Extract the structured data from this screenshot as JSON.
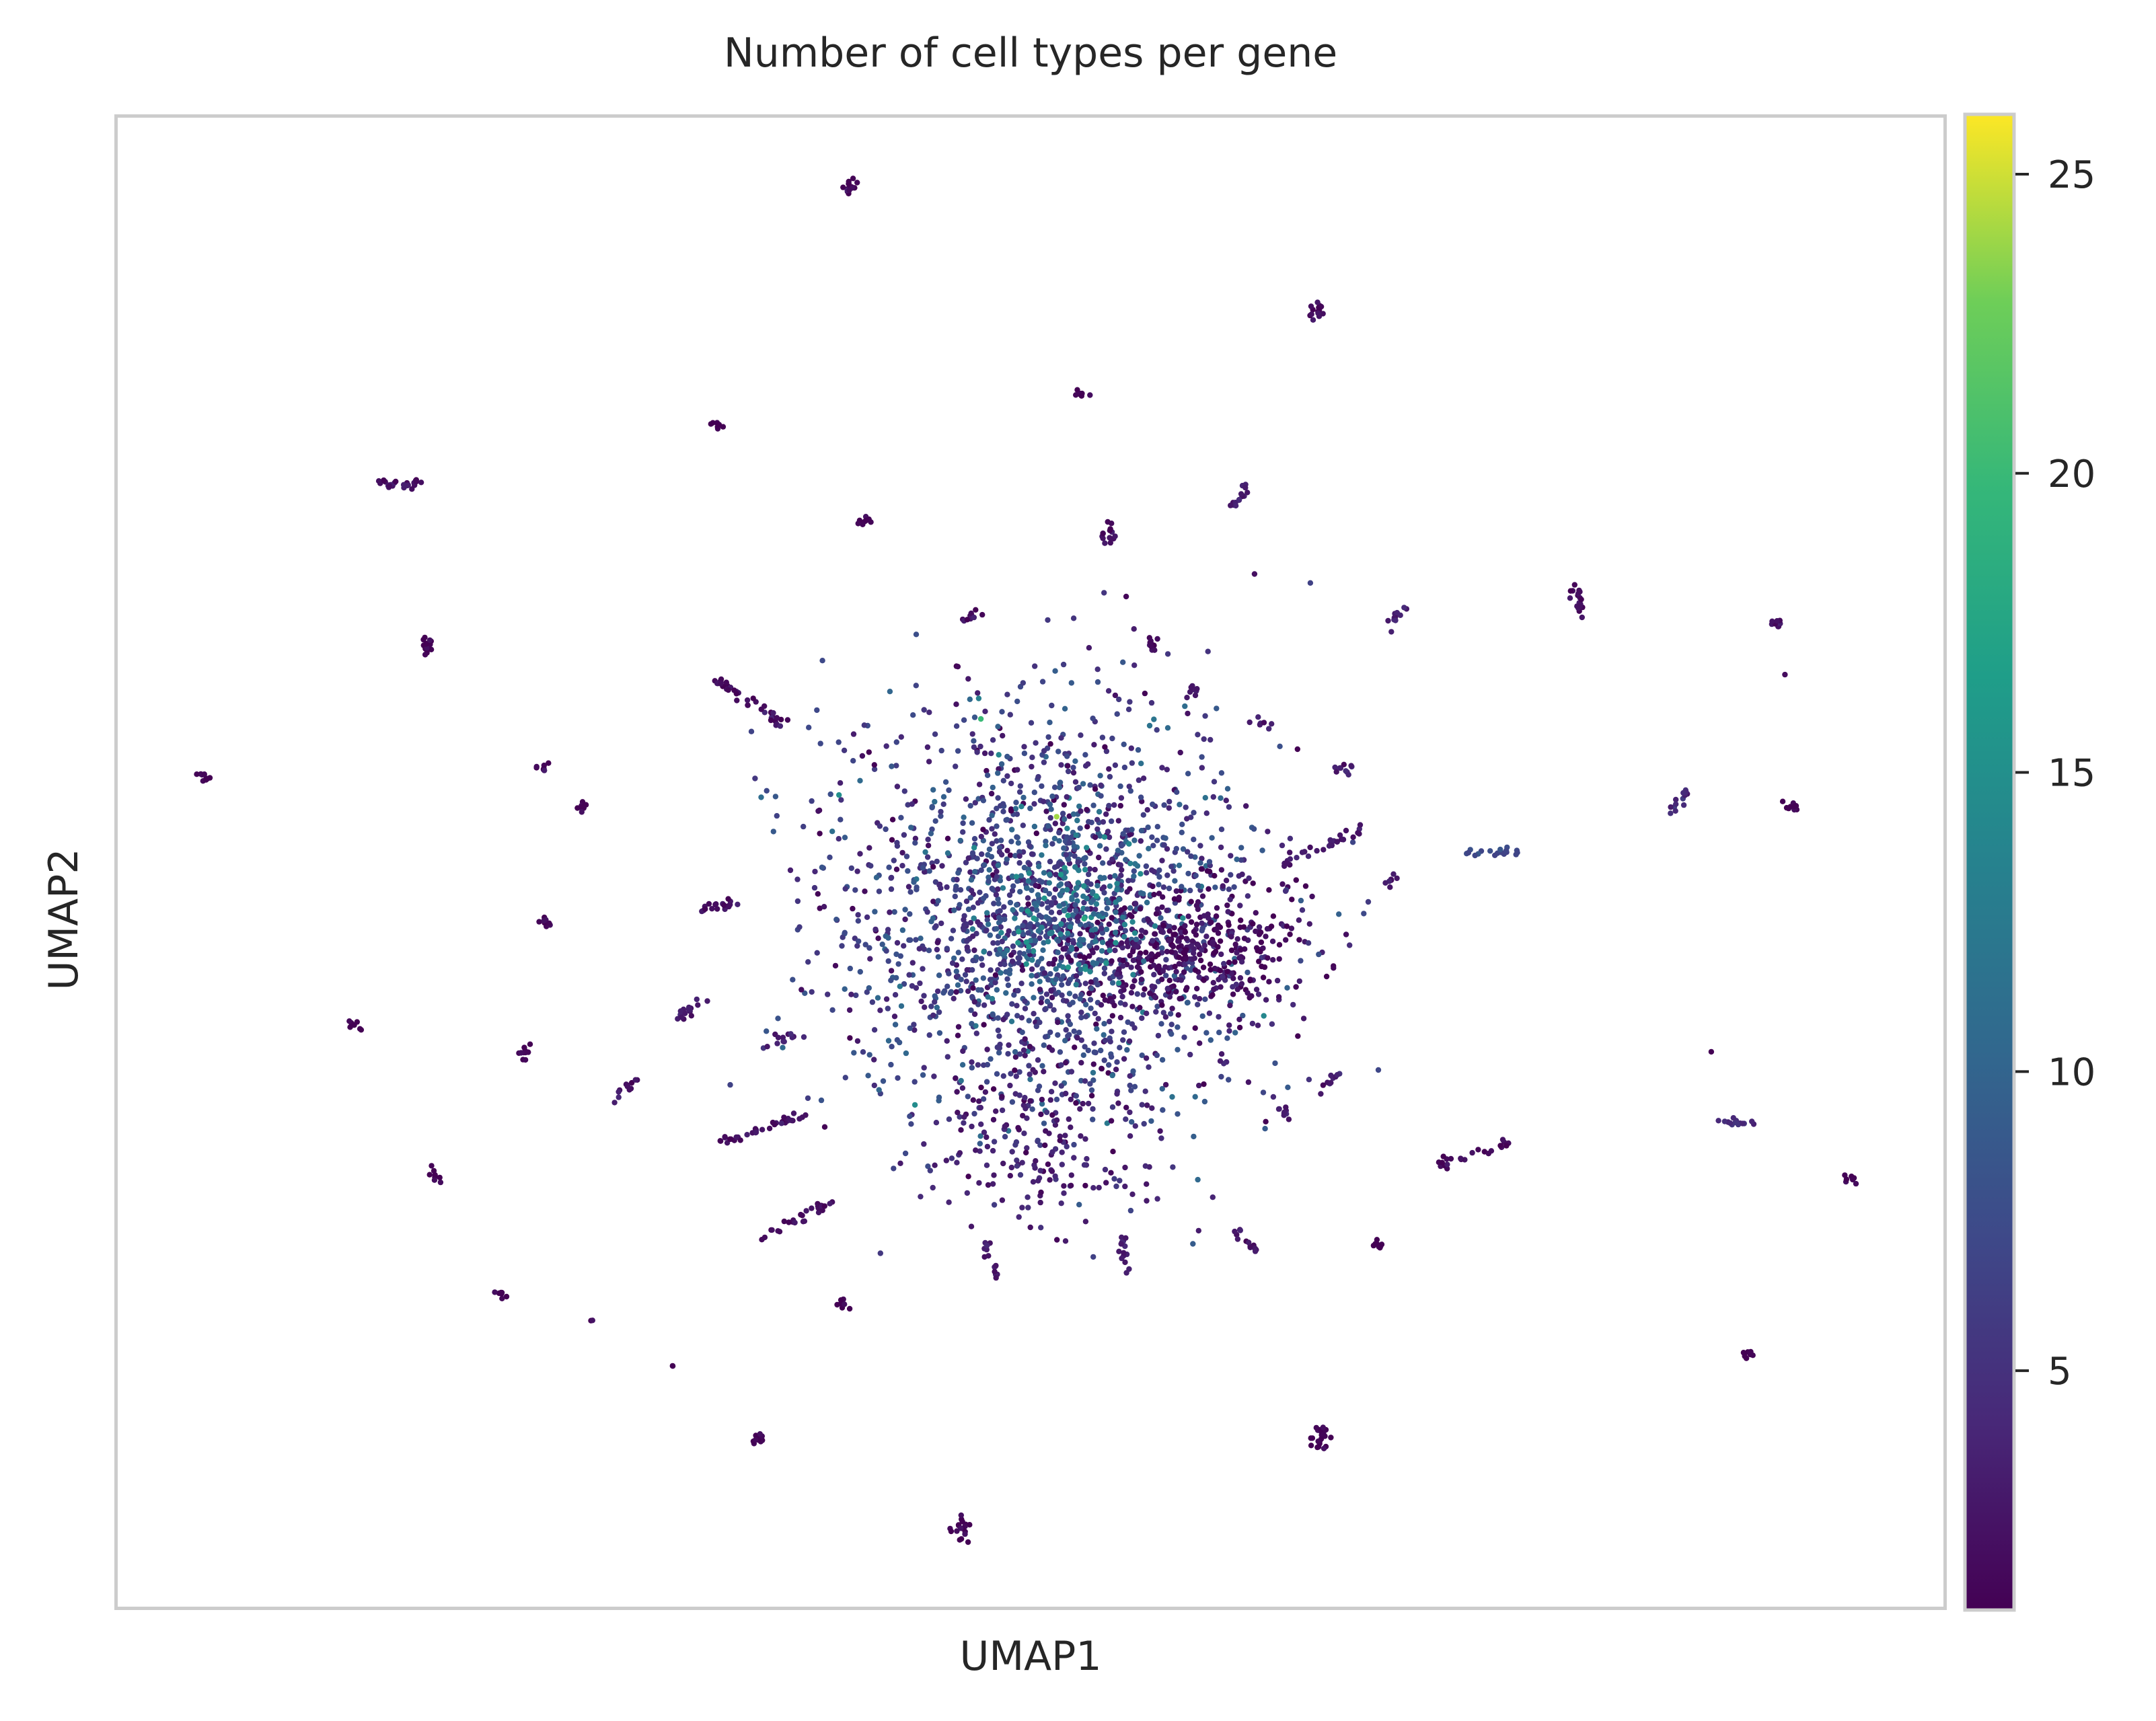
{
  "chart_data": {
    "type": "scatter",
    "title": "Number of cell types per gene",
    "xlabel": "UMAP1",
    "ylabel": "UMAP2",
    "x_ticks": "none",
    "y_ticks": "none",
    "grid": false,
    "colormap": "viridis",
    "colorbar": {
      "range": [
        1,
        26
      ],
      "ticks": [
        5,
        10,
        15,
        20,
        25
      ],
      "tick_labels": [
        "5",
        "10",
        "15",
        "20",
        "25"
      ]
    },
    "clusters": [
      {
        "x": 617,
        "y": 137,
        "r": 6,
        "n": 14,
        "v": 1
      },
      {
        "x": 955,
        "y": 225,
        "r": 6,
        "n": 14,
        "v": 1
      },
      {
        "x": 783,
        "y": 286,
        "r": 5,
        "n": 8,
        "v": 1
      },
      {
        "x": 520,
        "y": 308,
        "r": 5,
        "n": 8,
        "v": 1
      },
      {
        "x": 289,
        "y": 352,
        "r": 16,
        "n": 26,
        "v": 2,
        "dx": 1,
        "dy": 0
      },
      {
        "x": 628,
        "y": 378,
        "r": 5,
        "n": 8,
        "v": 1
      },
      {
        "x": 805,
        "y": 388,
        "r": 7,
        "n": 14,
        "v": 2
      },
      {
        "x": 900,
        "y": 362,
        "r": 12,
        "n": 14,
        "v": 3,
        "dx": 0.6,
        "dy": -0.8
      },
      {
        "x": 1145,
        "y": 434,
        "r": 12,
        "n": 20,
        "v": 2,
        "dx": 0.3,
        "dy": 1
      },
      {
        "x": 1015,
        "y": 446,
        "r": 10,
        "n": 12,
        "v": 3,
        "dx": 0.6,
        "dy": -0.8
      },
      {
        "x": 1290,
        "y": 452,
        "r": 5,
        "n": 10,
        "v": 2
      },
      {
        "x": 706,
        "y": 448,
        "r": 8,
        "n": 10,
        "v": 2,
        "dx": 1,
        "dy": 0
      },
      {
        "x": 836,
        "y": 467,
        "r": 6,
        "n": 10,
        "v": 2
      },
      {
        "x": 310,
        "y": 470,
        "r": 8,
        "n": 14,
        "v": 1,
        "dx": 0,
        "dy": 1
      },
      {
        "x": 545,
        "y": 510,
        "r": 30,
        "n": 40,
        "v": 2,
        "dx": 0.82,
        "dy": 0.57
      },
      {
        "x": 148,
        "y": 563,
        "r": 5,
        "n": 10,
        "v": 1
      },
      {
        "x": 393,
        "y": 558,
        "r": 4,
        "n": 8,
        "v": 1
      },
      {
        "x": 423,
        "y": 586,
        "r": 5,
        "n": 8,
        "v": 1
      },
      {
        "x": 868,
        "y": 503,
        "r": 5,
        "n": 8,
        "v": 3
      },
      {
        "x": 916,
        "y": 525,
        "r": 6,
        "n": 8,
        "v": 3
      },
      {
        "x": 1220,
        "y": 583,
        "r": 12,
        "n": 14,
        "v": 4,
        "dx": 0.6,
        "dy": -0.8
      },
      {
        "x": 1301,
        "y": 587,
        "r": 5,
        "n": 10,
        "v": 1
      },
      {
        "x": 522,
        "y": 658,
        "r": 15,
        "n": 18,
        "v": 2,
        "dx": 1,
        "dy": -0.2
      },
      {
        "x": 397,
        "y": 670,
        "r": 4,
        "n": 8,
        "v": 1
      },
      {
        "x": 257,
        "y": 744,
        "r": 4,
        "n": 8,
        "v": 1
      },
      {
        "x": 380,
        "y": 765,
        "r": 5,
        "n": 10,
        "v": 1
      },
      {
        "x": 500,
        "y": 733,
        "r": 14,
        "n": 16,
        "v": 3,
        "dx": 0.8,
        "dy": -0.6
      },
      {
        "x": 455,
        "y": 788,
        "r": 10,
        "n": 12,
        "v": 3,
        "dx": 0.6,
        "dy": -0.8
      },
      {
        "x": 567,
        "y": 755,
        "r": 10,
        "n": 10,
        "v": 3,
        "dx": 1,
        "dy": -0.3
      },
      {
        "x": 316,
        "y": 853,
        "r": 5,
        "n": 8,
        "v": 1
      },
      {
        "x": 553,
        "y": 820,
        "r": 34,
        "n": 34,
        "v": 2,
        "dx": 0.95,
        "dy": -0.3
      },
      {
        "x": 578,
        "y": 885,
        "r": 30,
        "n": 30,
        "v": 2,
        "dx": 0.9,
        "dy": -0.45
      },
      {
        "x": 365,
        "y": 940,
        "r": 5,
        "n": 8,
        "v": 1
      },
      {
        "x": 612,
        "y": 946,
        "r": 5,
        "n": 8,
        "v": 1
      },
      {
        "x": 430,
        "y": 959,
        "r": 2,
        "n": 2,
        "v": 1
      },
      {
        "x": 487,
        "y": 993,
        "r": 2,
        "n": 2,
        "v": 1
      },
      {
        "x": 550,
        "y": 1045,
        "r": 5,
        "n": 10,
        "v": 1
      },
      {
        "x": 698,
        "y": 1110,
        "r": 7,
        "n": 18,
        "v": 1
      },
      {
        "x": 958,
        "y": 1042,
        "r": 8,
        "n": 22,
        "v": 1
      },
      {
        "x": 1268,
        "y": 982,
        "r": 6,
        "n": 10,
        "v": 1
      },
      {
        "x": 1343,
        "y": 853,
        "r": 5,
        "n": 8,
        "v": 1
      },
      {
        "x": 1260,
        "y": 815,
        "r": 14,
        "n": 14,
        "v": 4,
        "dx": 1,
        "dy": 0.1
      },
      {
        "x": 1070,
        "y": 838,
        "r": 28,
        "n": 24,
        "v": 2,
        "dx": 0.95,
        "dy": -0.3
      },
      {
        "x": 1001,
        "y": 904,
        "r": 4,
        "n": 8,
        "v": 1
      },
      {
        "x": 903,
        "y": 900,
        "r": 12,
        "n": 14,
        "v": 3,
        "dx": 0.7,
        "dy": 0.7
      },
      {
        "x": 815,
        "y": 910,
        "r": 12,
        "n": 14,
        "v": 3,
        "dx": 0,
        "dy": 1
      },
      {
        "x": 720,
        "y": 915,
        "r": 16,
        "n": 14,
        "v": 3,
        "dx": 0.3,
        "dy": 1
      },
      {
        "x": 1083,
        "y": 620,
        "r": 18,
        "n": 18,
        "v": 7,
        "dx": 1,
        "dy": 0
      },
      {
        "x": 960,
        "y": 615,
        "r": 32,
        "n": 30,
        "v": 3,
        "dx": 0.93,
        "dy": -0.38
      },
      {
        "x": 1010,
        "y": 640,
        "r": 6,
        "n": 8,
        "v": 3
      },
      {
        "x": 966,
        "y": 785,
        "r": 10,
        "n": 10,
        "v": 3,
        "dx": 0.5,
        "dy": -0.9
      },
      {
        "x": 930,
        "y": 805,
        "r": 12,
        "n": 10,
        "v": 3,
        "dx": 0.6,
        "dy": 0.8
      },
      {
        "x": 975,
        "y": 558,
        "r": 10,
        "n": 10,
        "v": 3,
        "dx": 1,
        "dy": 0
      },
      {
        "x": 1243,
        "y": 765,
        "r": 2,
        "n": 1,
        "v": 1
      },
      {
        "x": 910,
        "y": 418,
        "r": 2,
        "n": 1,
        "v": 1
      },
      {
        "x": 1295,
        "y": 490,
        "r": 2,
        "n": 1,
        "v": 1
      }
    ],
    "core": [
      {
        "x": 760,
        "y": 670,
        "sx": 80,
        "sy": 80,
        "n": 1800,
        "v": 6
      },
      {
        "x": 860,
        "y": 690,
        "sx": 45,
        "sy": 22,
        "n": 420,
        "v": 2
      },
      {
        "x": 780,
        "y": 660,
        "sx": 30,
        "sy": 28,
        "n": 220,
        "v": 11
      },
      {
        "x": 760,
        "y": 830,
        "sx": 40,
        "sy": 30,
        "n": 160,
        "v": 3
      }
    ],
    "highlights": [
      {
        "x": 767,
        "y": 593,
        "v": 24
      },
      {
        "x": 712,
        "y": 522,
        "v": 20
      },
      {
        "x": 787,
        "y": 667,
        "v": 18
      },
      {
        "x": 770,
        "y": 635,
        "v": 16
      },
      {
        "x": 745,
        "y": 700,
        "v": 15
      },
      {
        "x": 725,
        "y": 548,
        "v": 14
      }
    ]
  }
}
